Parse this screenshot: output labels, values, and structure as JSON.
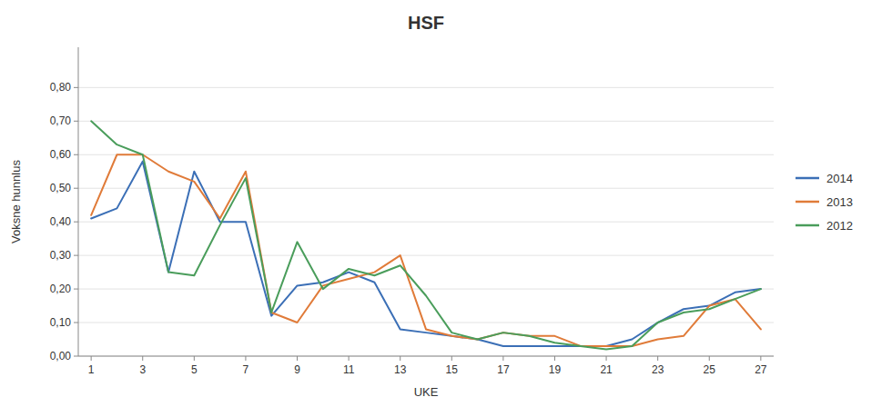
{
  "chart_data": {
    "type": "line",
    "title": "HSF",
    "x_label": "UKE",
    "y_label": "Voksne hunnlus",
    "x": [
      1,
      2,
      3,
      4,
      5,
      6,
      7,
      8,
      9,
      10,
      11,
      12,
      13,
      14,
      15,
      16,
      17,
      18,
      19,
      20,
      21,
      22,
      23,
      24,
      25,
      26,
      27
    ],
    "series": [
      {
        "name": "2014",
        "values": [
          0.41,
          0.44,
          0.58,
          0.25,
          0.55,
          0.4,
          0.4,
          0.12,
          0.21,
          0.22,
          0.25,
          0.22,
          0.08,
          0.07,
          0.06,
          0.05,
          0.03,
          0.03,
          0.03,
          0.03,
          0.03,
          0.05,
          0.1,
          0.14,
          0.15,
          0.19,
          0.2
        ]
      },
      {
        "name": "2013",
        "values": [
          0.42,
          0.6,
          0.6,
          0.55,
          0.52,
          0.41,
          0.55,
          0.13,
          0.1,
          0.21,
          0.23,
          0.25,
          0.3,
          0.08,
          0.06,
          0.05,
          0.07,
          0.06,
          0.06,
          0.03,
          0.03,
          0.03,
          0.05,
          0.06,
          0.15,
          0.17,
          0.08
        ]
      },
      {
        "name": "2012",
        "values": [
          0.7,
          0.63,
          0.6,
          0.25,
          0.24,
          0.39,
          0.53,
          0.13,
          0.34,
          0.2,
          0.26,
          0.24,
          0.27,
          0.18,
          0.07,
          0.05,
          0.07,
          0.06,
          0.04,
          0.03,
          0.02,
          0.03,
          0.1,
          0.13,
          0.14,
          0.17,
          0.2
        ]
      }
    ],
    "xlim": [
      0.5,
      27.5
    ],
    "xticks": [
      1,
      3,
      5,
      7,
      9,
      11,
      13,
      15,
      17,
      19,
      21,
      23,
      25,
      27
    ],
    "ylim": [
      0.0,
      0.92
    ],
    "yticks": [
      {
        "value": 0.0,
        "label": "0,00"
      },
      {
        "value": 0.1,
        "label": "0,10"
      },
      {
        "value": 0.2,
        "label": "0,20"
      },
      {
        "value": 0.3,
        "label": "0,30"
      },
      {
        "value": 0.4,
        "label": "0,40"
      },
      {
        "value": 0.5,
        "label": "0,50"
      },
      {
        "value": 0.6,
        "label": "0,60"
      },
      {
        "value": 0.7,
        "label": "0,70"
      },
      {
        "value": 0.8,
        "label": "0,80"
      }
    ],
    "grid": true,
    "legend": "right"
  }
}
